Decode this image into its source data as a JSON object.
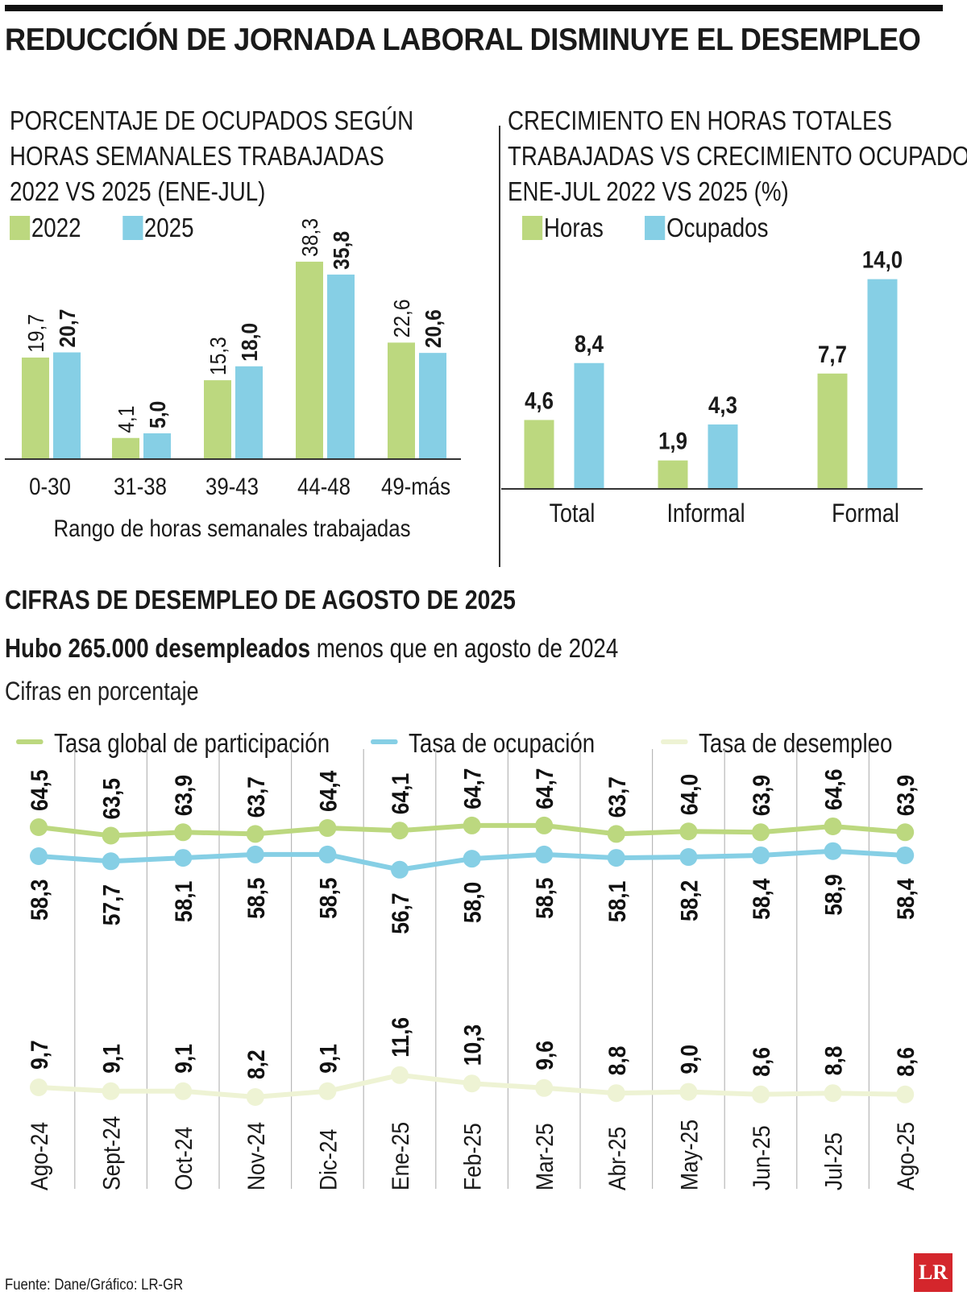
{
  "title": "REDUCCIÓN DE JORNADA LABORAL DISMINUYE EL DESEMPLEO",
  "colors": {
    "green": "#bcd87f",
    "blue": "#86cfe5",
    "pale": "#eef3d4",
    "axis": "#333333"
  },
  "chart_data": [
    {
      "type": "bar",
      "title_lines": [
        "PORCENTAJE DE OCUPADOS SEGÚN",
        "HORAS SEMANALES TRABAJADAS",
        "2022 VS 2025 (ENE-JUL)"
      ],
      "categories": [
        "0-30",
        "31-38",
        "39-43",
        "44-48",
        "49-más"
      ],
      "series": [
        {
          "name": "2022",
          "values": [
            19.7,
            4.1,
            15.3,
            38.3,
            22.6
          ],
          "labels": [
            "19,7",
            "4,1",
            "15,3",
            "38,3",
            "22,6"
          ]
        },
        {
          "name": "2025",
          "values": [
            20.7,
            5.0,
            18.0,
            35.8,
            20.6
          ],
          "labels": [
            "20,7",
            "5,0",
            "18,0",
            "35,8",
            "20,6"
          ]
        }
      ],
      "xlabel": "Rango de horas semanales trabajadas",
      "ylabel": "",
      "ylim": [
        0,
        40
      ]
    },
    {
      "type": "bar",
      "title_lines": [
        "CRECIMIENTO EN HORAS TOTALES",
        "TRABAJADAS VS CRECIMIENTO OCUPADOS",
        "ENE-JUL 2022 VS 2025 (%)"
      ],
      "categories": [
        "Total",
        "Informal",
        "Formal"
      ],
      "series": [
        {
          "name": "Horas",
          "values": [
            4.6,
            1.9,
            7.7
          ],
          "labels": [
            "4,6",
            "1,9",
            "7,7"
          ]
        },
        {
          "name": "Ocupados",
          "values": [
            8.4,
            4.3,
            14.0
          ],
          "labels": [
            "8,4",
            "4,3",
            "14,0"
          ]
        }
      ],
      "xlabel": "",
      "ylabel": "",
      "ylim": [
        0,
        15
      ]
    },
    {
      "type": "line",
      "title": "CIFRAS DE DESEMPLEO DE AGOSTO DE 2025",
      "headline_bold": "Hubo 265.000 desempleados",
      "headline_rest": " menos que en agosto de 2024",
      "units": "Cifras en porcentaje",
      "x": [
        "Ago-24",
        "Sept-24",
        "Oct-24",
        "Nov-24",
        "Dic-24",
        "Ene-25",
        "Feb-25",
        "Mar-25",
        "Abr-25",
        "May-25",
        "Jun-25",
        "Jul-25",
        "Ago-25"
      ],
      "series": [
        {
          "name": "Tasa global de participación",
          "values": [
            64.5,
            63.5,
            63.9,
            63.7,
            64.4,
            64.1,
            64.7,
            64.7,
            63.7,
            64.0,
            63.9,
            64.6,
            63.9
          ],
          "labels": [
            "64,5",
            "63,5",
            "63,9",
            "63,7",
            "64,4",
            "64,1",
            "64,7",
            "64,7",
            "63,7",
            "64,0",
            "63,9",
            "64,6",
            "63,9"
          ]
        },
        {
          "name": "Tasa de ocupación",
          "values": [
            58.3,
            57.7,
            58.1,
            58.5,
            58.5,
            56.7,
            58.0,
            58.5,
            58.1,
            58.2,
            58.4,
            58.9,
            58.4
          ],
          "labels": [
            "58,3",
            "57,7",
            "58,1",
            "58,5",
            "58,5",
            "56,7",
            "58,0",
            "58,5",
            "58,1",
            "58,2",
            "58,4",
            "58,9",
            "58,4"
          ]
        },
        {
          "name": "Tasa de desempleo",
          "values": [
            9.7,
            9.1,
            9.1,
            8.2,
            9.1,
            11.6,
            10.3,
            9.6,
            8.8,
            9.0,
            8.6,
            8.8,
            8.6
          ],
          "labels": [
            "9,7",
            "9,1",
            "9,1",
            "8,2",
            "9,1",
            "11,6",
            "10,3",
            "9,6",
            "8,8",
            "9,0",
            "8,6",
            "8,8",
            "8,6"
          ]
        }
      ]
    }
  ],
  "source": "Fuente: Dane/Gráfico: LR-GR",
  "logo_text": "LR"
}
